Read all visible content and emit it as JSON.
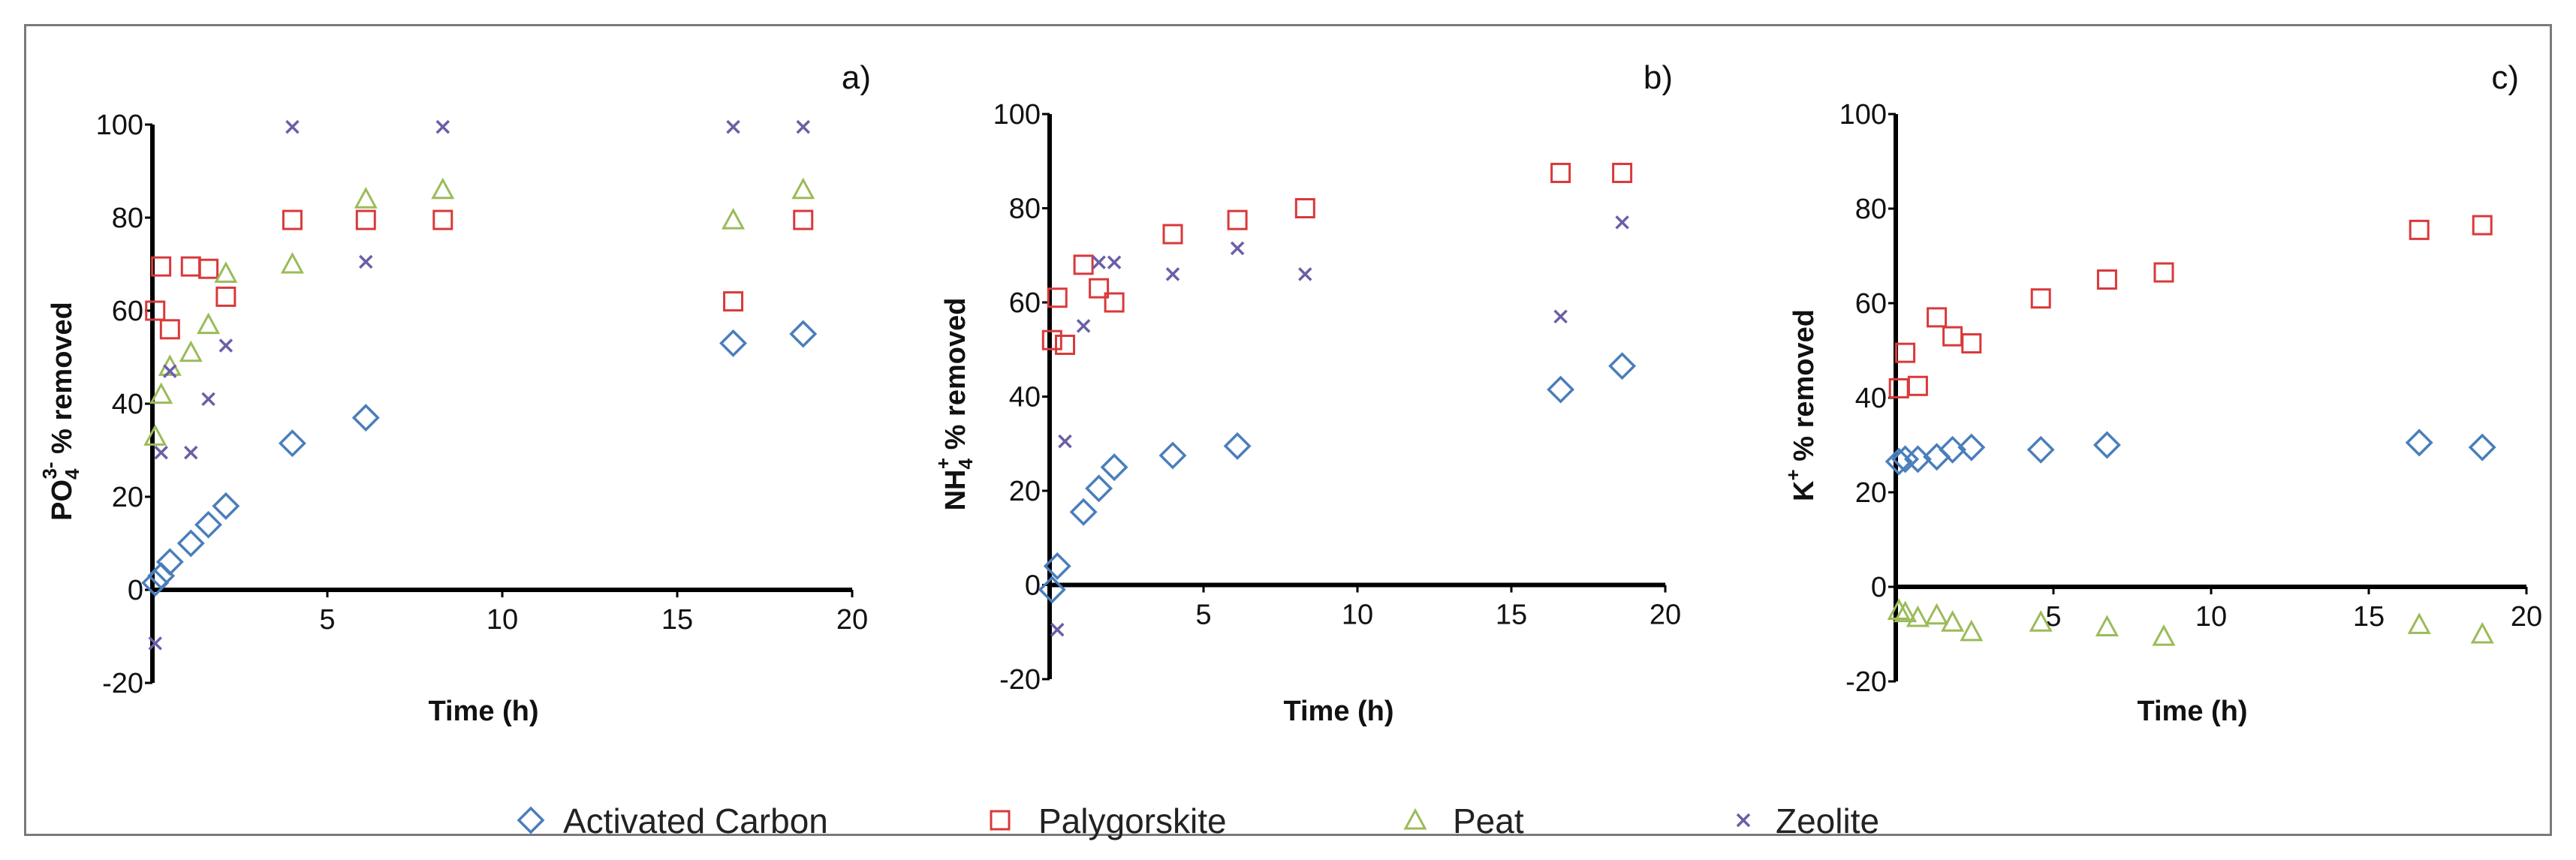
{
  "colors": {
    "Activated Carbon": "#4a7ebb",
    "Palygorskite": "#d9393a",
    "Peat": "#9bbb59",
    "Zeolite": "#6a5fa6"
  },
  "legend": [
    {
      "name": "Activated Carbon",
      "marker": "diamond"
    },
    {
      "name": "Palygorskite",
      "marker": "square"
    },
    {
      "name": "Peat",
      "marker": "triangle"
    },
    {
      "name": "Zeolite",
      "marker": "x"
    }
  ],
  "chart_data": [
    {
      "type": "scatter",
      "panel_label": "a)",
      "xlabel": "Time (h)",
      "ylabel_main": "PO",
      "ylabel_sub": "4",
      "ylabel_sup": "3-",
      "ylabel_rest": " % removed",
      "xlim": [
        0,
        20
      ],
      "ylim": [
        -20,
        100
      ],
      "xticks": [
        5,
        10,
        15,
        20
      ],
      "yticks": [
        -20,
        0,
        20,
        40,
        60,
        80,
        100
      ],
      "grid": false,
      "series": [
        {
          "name": "Activated Carbon",
          "marker": "diamond",
          "points": [
            [
              0.08,
              1.5
            ],
            [
              0.25,
              3
            ],
            [
              0.5,
              6
            ],
            [
              1.1,
              10
            ],
            [
              1.6,
              14
            ],
            [
              2.1,
              18
            ],
            [
              4.0,
              31.5
            ],
            [
              6.1,
              37
            ],
            [
              16.6,
              53
            ],
            [
              18.6,
              55
            ]
          ]
        },
        {
          "name": "Palygorskite",
          "marker": "square",
          "points": [
            [
              0.08,
              60
            ],
            [
              0.25,
              69.5
            ],
            [
              0.5,
              56
            ],
            [
              1.1,
              69.5
            ],
            [
              1.6,
              69
            ],
            [
              2.1,
              63
            ],
            [
              4.0,
              79.5
            ],
            [
              6.1,
              79.5
            ],
            [
              8.3,
              79.5
            ],
            [
              16.6,
              62
            ],
            [
              18.6,
              79.5
            ]
          ]
        },
        {
          "name": "Peat",
          "marker": "triangle",
          "points": [
            [
              0.08,
              33
            ],
            [
              0.25,
              42
            ],
            [
              0.5,
              48
            ],
            [
              1.1,
              51
            ],
            [
              1.6,
              57
            ],
            [
              2.1,
              68
            ],
            [
              4.0,
              70
            ],
            [
              6.1,
              84
            ],
            [
              8.3,
              86
            ],
            [
              16.6,
              79.5
            ],
            [
              18.6,
              86
            ]
          ]
        },
        {
          "name": "Zeolite",
          "marker": "x",
          "points": [
            [
              0.08,
              -11.5
            ],
            [
              0.25,
              29.5
            ],
            [
              0.5,
              47
            ],
            [
              1.1,
              29.5
            ],
            [
              1.6,
              41
            ],
            [
              2.1,
              52.5
            ],
            [
              4.0,
              99.5
            ],
            [
              6.1,
              70.5
            ],
            [
              8.3,
              99.5
            ],
            [
              16.6,
              99.5
            ],
            [
              18.6,
              99.5
            ]
          ]
        }
      ]
    },
    {
      "type": "scatter",
      "panel_label": "b)",
      "xlabel": "Time (h)",
      "ylabel_main": "NH",
      "ylabel_sub": "4",
      "ylabel_sup": "+",
      "ylabel_rest": " % removed",
      "xlim": [
        0,
        20
      ],
      "ylim": [
        -20,
        100
      ],
      "xticks": [
        5,
        10,
        15,
        20
      ],
      "yticks": [
        -20,
        0,
        20,
        40,
        60,
        80,
        100
      ],
      "grid": false,
      "series": [
        {
          "name": "Activated Carbon",
          "marker": "diamond",
          "points": [
            [
              0.08,
              -1
            ],
            [
              0.25,
              4
            ],
            [
              1.1,
              15.5
            ],
            [
              1.6,
              20.5
            ],
            [
              2.1,
              25
            ],
            [
              4.0,
              27.5
            ],
            [
              6.1,
              29.5
            ],
            [
              16.6,
              41.5
            ],
            [
              18.6,
              46.5
            ]
          ]
        },
        {
          "name": "Palygorskite",
          "marker": "square",
          "points": [
            [
              0.08,
              52
            ],
            [
              0.25,
              61
            ],
            [
              0.5,
              51
            ],
            [
              1.1,
              68
            ],
            [
              1.6,
              63
            ],
            [
              2.1,
              60
            ],
            [
              4.0,
              74.5
            ],
            [
              6.1,
              77.5
            ],
            [
              8.3,
              80
            ],
            [
              16.6,
              87.5
            ],
            [
              18.6,
              87.5
            ]
          ]
        },
        {
          "name": "Zeolite",
          "marker": "x",
          "points": [
            [
              0.25,
              -9.5
            ],
            [
              0.5,
              30.5
            ],
            [
              1.1,
              55
            ],
            [
              1.6,
              68.5
            ],
            [
              2.1,
              68.5
            ],
            [
              4.0,
              66
            ],
            [
              6.1,
              71.5
            ],
            [
              8.3,
              66
            ],
            [
              16.6,
              57
            ],
            [
              18.6,
              77
            ]
          ]
        }
      ]
    },
    {
      "type": "scatter",
      "panel_label": "c)",
      "xlabel": "Time (h)",
      "ylabel_main": "K",
      "ylabel_sub": "",
      "ylabel_sup": "+",
      "ylabel_rest": " % removed",
      "xlim": [
        0,
        20
      ],
      "ylim": [
        -20,
        100
      ],
      "xticks": [
        5,
        10,
        15,
        20
      ],
      "yticks": [
        -20,
        0,
        20,
        40,
        60,
        80,
        100
      ],
      "grid": false,
      "series": [
        {
          "name": "Activated Carbon",
          "marker": "diamond",
          "points": [
            [
              0.1,
              26.5
            ],
            [
              0.3,
              27
            ],
            [
              0.7,
              27
            ],
            [
              1.3,
              27.5
            ],
            [
              1.8,
              29
            ],
            [
              2.4,
              29.5
            ],
            [
              4.6,
              29
            ],
            [
              6.7,
              30
            ],
            [
              16.6,
              30.5
            ],
            [
              18.6,
              29.5
            ]
          ]
        },
        {
          "name": "Palygorskite",
          "marker": "square",
          "points": [
            [
              0.1,
              42
            ],
            [
              0.3,
              49.5
            ],
            [
              0.7,
              42.5
            ],
            [
              1.3,
              57
            ],
            [
              1.8,
              53
            ],
            [
              2.4,
              51.5
            ],
            [
              4.6,
              61
            ],
            [
              6.7,
              65
            ],
            [
              8.5,
              66.5
            ],
            [
              16.6,
              75.5
            ],
            [
              18.6,
              76.5
            ]
          ]
        },
        {
          "name": "Peat",
          "marker": "triangle",
          "points": [
            [
              0.1,
              -5
            ],
            [
              0.3,
              -5.5
            ],
            [
              0.7,
              -6.5
            ],
            [
              1.3,
              -6
            ],
            [
              1.8,
              -7.5
            ],
            [
              2.4,
              -9.5
            ],
            [
              4.6,
              -7.5
            ],
            [
              6.7,
              -8.5
            ],
            [
              8.5,
              -10.5
            ],
            [
              16.6,
              -8
            ],
            [
              18.6,
              -10
            ]
          ]
        }
      ]
    }
  ]
}
